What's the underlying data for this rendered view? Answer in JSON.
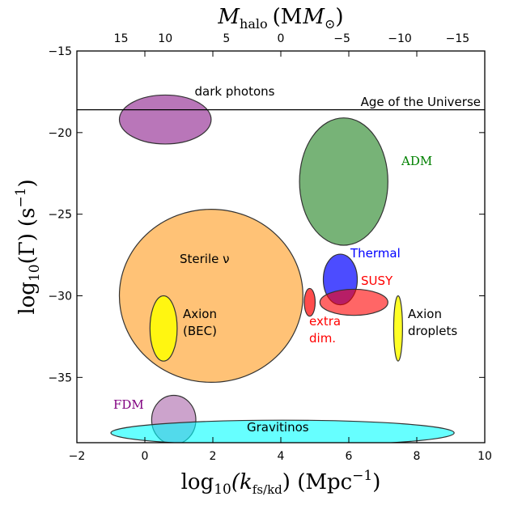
{
  "chart_data": {
    "type": "scatter",
    "title": "",
    "xlabel": "log10(kfs/kd) (Mpc^-1)",
    "ylabel": "log10(Γ) (s^-1)",
    "top_xlabel": "M_halo (M⊙)",
    "xlim": [
      -2,
      10
    ],
    "ylim": [
      -39,
      -15
    ],
    "x_ticks": [
      -2,
      0,
      2,
      4,
      6,
      8,
      10
    ],
    "x_tick_labels": [
      "−2",
      "0",
      "2",
      "4",
      "6",
      "8",
      "10"
    ],
    "y_ticks": [
      -35,
      -30,
      -25,
      -20,
      -15
    ],
    "y_tick_labels": [
      "−35",
      "−30",
      "−25",
      "−20",
      "−15"
    ],
    "top_ticks": [
      {
        "x": -0.7,
        "label": "15"
      },
      {
        "x": 0.6,
        "label": "10"
      },
      {
        "x": 2.4,
        "label": "5"
      },
      {
        "x": 4.0,
        "label": "0"
      },
      {
        "x": 5.8,
        "label": "−5"
      },
      {
        "x": 7.5,
        "label": "−10"
      },
      {
        "x": 9.2,
        "label": "−15"
      }
    ],
    "reference_lines": [
      {
        "y": -18.6,
        "label": "Age of the Universe"
      }
    ],
    "regions": [
      {
        "name": "dark photons",
        "cx": 0.6,
        "cy": -19.2,
        "rx": 1.35,
        "ry": 1.5,
        "color": "#8b1a8b",
        "opacity": 0.6,
        "label_color": "#000000"
      },
      {
        "name": "ADM",
        "cx": 5.85,
        "cy": -23.0,
        "rx": 1.3,
        "ry": 3.9,
        "color": "#2e8b2e",
        "opacity": 0.65,
        "label_color": "#008000"
      },
      {
        "name": "Sterile ν",
        "cx": 1.95,
        "cy": -30.0,
        "rx": 2.7,
        "ry": 5.3,
        "color": "#ff9a1a",
        "opacity": 0.6,
        "label_color": "#000000"
      },
      {
        "name": "Axion (BEC)",
        "cx": 0.55,
        "cy": -32.0,
        "rx": 0.4,
        "ry": 2.0,
        "color": "#ffff00",
        "opacity": 0.85,
        "label_color": "#000000"
      },
      {
        "name": "Thermal",
        "cx": 5.75,
        "cy": -29.0,
        "rx": 0.5,
        "ry": 1.55,
        "color": "#0000ff",
        "opacity": 0.7,
        "label_color": "#0000ff"
      },
      {
        "name": "SUSY",
        "cx": 6.15,
        "cy": -30.4,
        "rx": 1.0,
        "ry": 0.8,
        "color": "#ff0000",
        "opacity": 0.6,
        "label_color": "#ff0000"
      },
      {
        "name": "extra dim.",
        "cx": 4.85,
        "cy": -30.4,
        "rx": 0.16,
        "ry": 0.85,
        "color": "#ff0000",
        "opacity": 0.7,
        "label_color": "#ff0000"
      },
      {
        "name": "Axion droplets",
        "cx": 7.45,
        "cy": -32.0,
        "rx": 0.13,
        "ry": 2.0,
        "color": "#ffff00",
        "opacity": 0.85,
        "label_color": "#000000"
      },
      {
        "name": "FDM",
        "cx": 0.85,
        "cy": -37.6,
        "rx": 0.65,
        "ry": 1.5,
        "color": "#aa66aa",
        "opacity": 0.6,
        "label_color": "#800080"
      },
      {
        "name": "Gravitinos",
        "cx": 4.05,
        "cy": -38.4,
        "rx": 5.05,
        "ry": 0.78,
        "color": "#00ffff",
        "opacity": 0.6,
        "label_color": "#000000"
      }
    ]
  },
  "labels": {
    "dark_photons": "dark photons",
    "age_universe": "Age of the Universe",
    "adm": "ADM",
    "sterile": "Sterile ν",
    "axion_bec_1": "Axion",
    "axion_bec_2": "(BEC)",
    "thermal": "Thermal",
    "susy": "SUSY",
    "extra_1": "extra",
    "extra_2": "dim.",
    "axion_drop_1": "Axion",
    "axion_drop_2": "droplets",
    "fdm": "FDM",
    "gravitinos": "Gravitinos",
    "ylabel_log": "log",
    "ylabel_sub": "10",
    "ylabel_arg": "(Γ)",
    "ylabel_unit": "(s",
    "ylabel_exp": "−1",
    "ylabel_close": ")",
    "xlabel_log": "log",
    "xlabel_sub": "10",
    "xlabel_k": "(k",
    "xlabel_ksub": "fs/kd",
    "xlabel_rest": ") (Mpc",
    "xlabel_exp": "−1",
    "xlabel_close": ")",
    "top_M": "M",
    "top_sub": "halo",
    "top_unit": "(M",
    "top_sun": "⊙",
    "top_close": ")"
  }
}
